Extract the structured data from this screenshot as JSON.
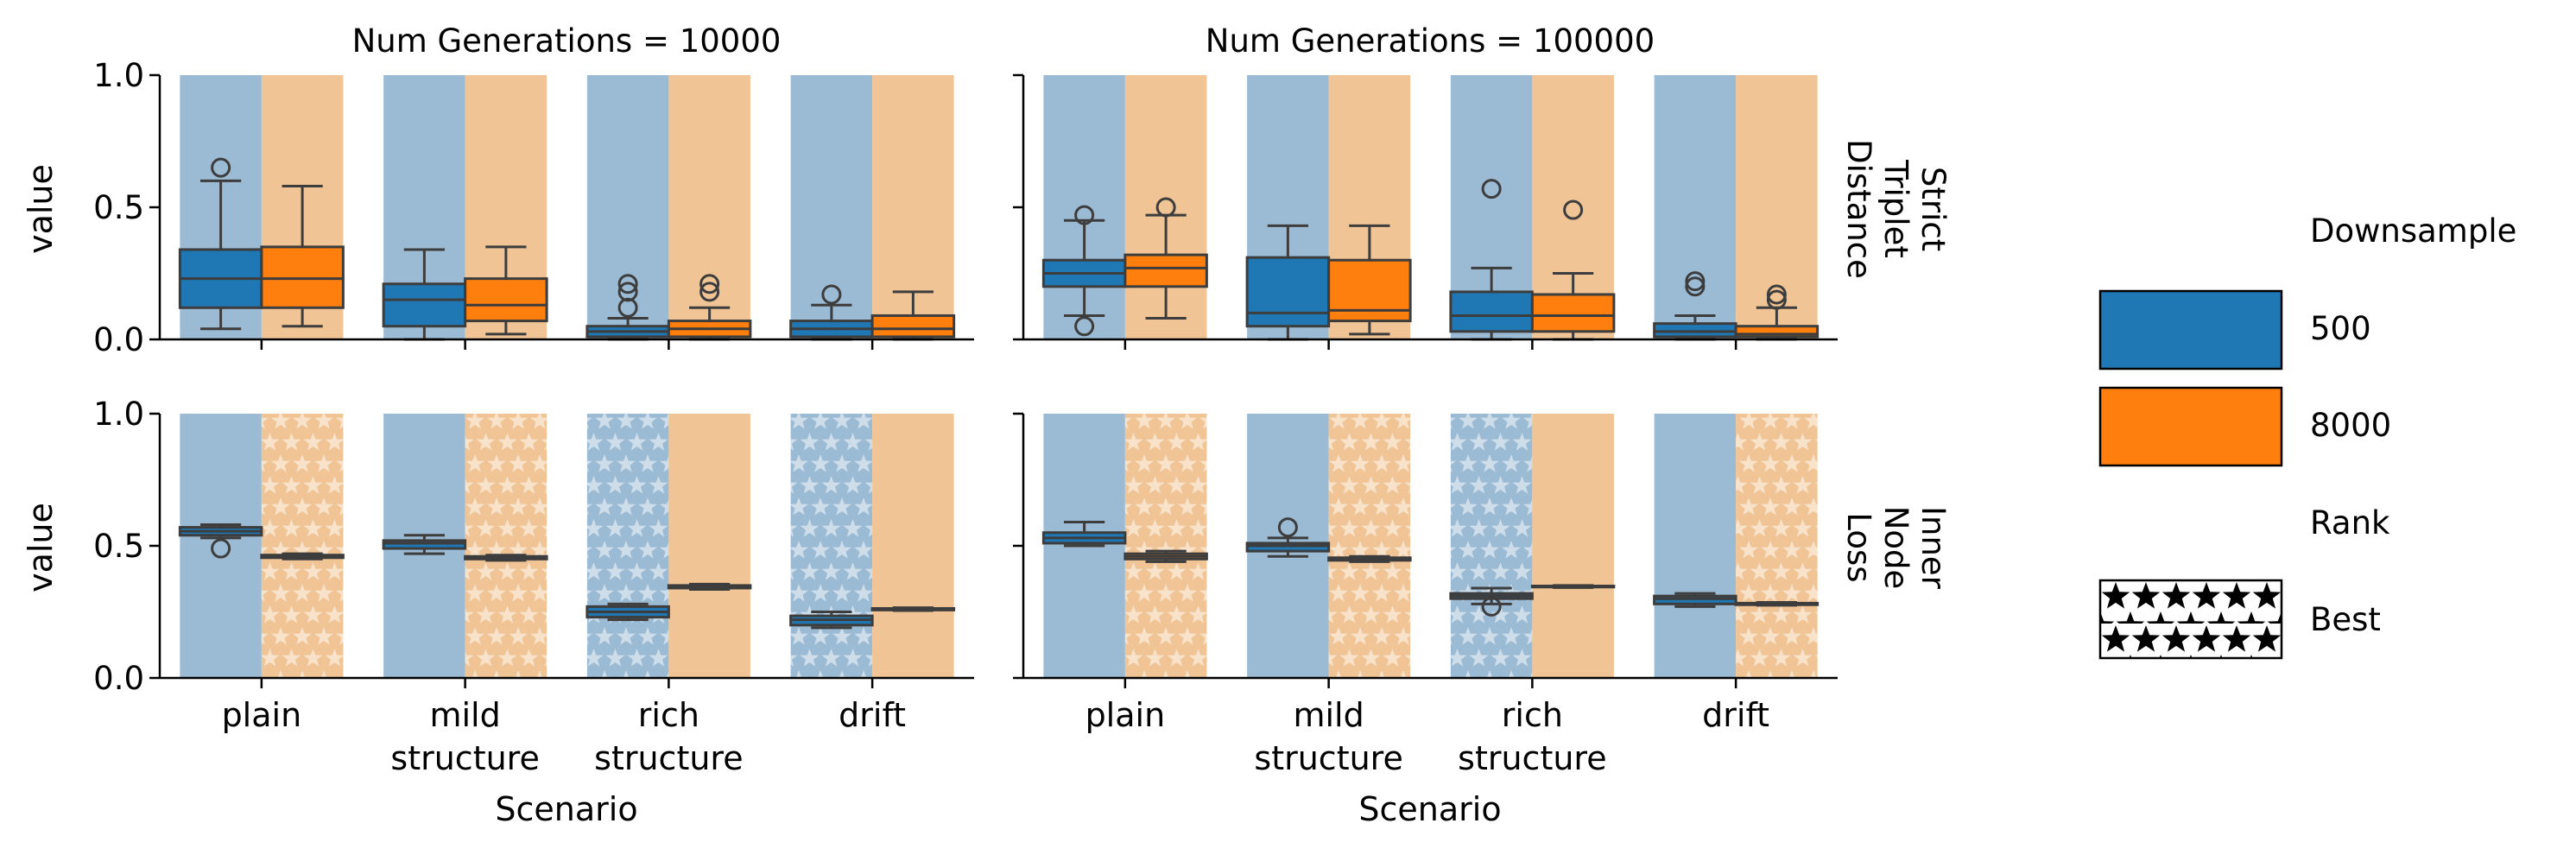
{
  "chart_data": {
    "type": "box",
    "layout": "facet-grid 2x2",
    "col_facet_titles": [
      "Num Generations = 10000",
      "Num Generations = 100000"
    ],
    "row_facet_titles": [
      [
        "Strict",
        "Triplet",
        "Distance"
      ],
      [
        "Inner",
        "Node",
        "Loss"
      ]
    ],
    "ylabel": "value",
    "xlabel": "Scenario",
    "categories": [
      [
        "plain"
      ],
      [
        "mild",
        "structure"
      ],
      [
        "rich",
        "structure"
      ],
      [
        "drift"
      ]
    ],
    "ylim": [
      0,
      1
    ],
    "yticks": [
      "0.0",
      "0.5",
      "1.0"
    ],
    "hue": {
      "title": "Downsample",
      "levels": [
        "500",
        "8000"
      ],
      "colors": [
        "#1f77b4",
        "#ff7f0e"
      ],
      "light_colors": [
        "#9bbad4",
        "#f0c495"
      ]
    },
    "pattern": {
      "title": "Rank",
      "label": "Best",
      "mark": "stars"
    },
    "legend_placement": "right",
    "panels": [
      {
        "row": 0,
        "col": 0,
        "boxes": [
          {
            "category": "plain",
            "downsample": "500",
            "whislo": 0.04,
            "q1": 0.12,
            "med": 0.23,
            "q3": 0.34,
            "whishi": 0.6,
            "fliers": [
              0.65
            ],
            "best": false
          },
          {
            "category": "plain",
            "downsample": "8000",
            "whislo": 0.05,
            "q1": 0.12,
            "med": 0.23,
            "q3": 0.35,
            "whishi": 0.58,
            "fliers": [],
            "best": false
          },
          {
            "category": "mild structure",
            "downsample": "500",
            "whislo": 0.0,
            "q1": 0.05,
            "med": 0.15,
            "q3": 0.21,
            "whishi": 0.34,
            "fliers": [],
            "best": false
          },
          {
            "category": "mild structure",
            "downsample": "8000",
            "whislo": 0.02,
            "q1": 0.07,
            "med": 0.13,
            "q3": 0.23,
            "whishi": 0.35,
            "fliers": [],
            "best": false
          },
          {
            "category": "rich structure",
            "downsample": "500",
            "whislo": 0.0,
            "q1": 0.01,
            "med": 0.03,
            "q3": 0.05,
            "whishi": 0.08,
            "fliers": [
              0.12,
              0.18,
              0.21
            ],
            "best": false
          },
          {
            "category": "rich structure",
            "downsample": "8000",
            "whislo": 0.0,
            "q1": 0.01,
            "med": 0.04,
            "q3": 0.07,
            "whishi": 0.12,
            "fliers": [
              0.18,
              0.21
            ],
            "best": false
          },
          {
            "category": "drift",
            "downsample": "500",
            "whislo": 0.0,
            "q1": 0.01,
            "med": 0.04,
            "q3": 0.07,
            "whishi": 0.13,
            "fliers": [
              0.17
            ],
            "best": false
          },
          {
            "category": "drift",
            "downsample": "8000",
            "whislo": 0.0,
            "q1": 0.01,
            "med": 0.04,
            "q3": 0.09,
            "whishi": 0.18,
            "fliers": [],
            "best": false
          }
        ]
      },
      {
        "row": 0,
        "col": 1,
        "boxes": [
          {
            "category": "plain",
            "downsample": "500",
            "whislo": 0.09,
            "q1": 0.2,
            "med": 0.25,
            "q3": 0.3,
            "whishi": 0.45,
            "fliers": [
              0.05,
              0.47
            ],
            "best": false
          },
          {
            "category": "plain",
            "downsample": "8000",
            "whislo": 0.08,
            "q1": 0.2,
            "med": 0.27,
            "q3": 0.32,
            "whishi": 0.47,
            "fliers": [
              0.5
            ],
            "best": false
          },
          {
            "category": "mild structure",
            "downsample": "500",
            "whislo": 0.0,
            "q1": 0.05,
            "med": 0.1,
            "q3": 0.31,
            "whishi": 0.43,
            "fliers": [],
            "best": false
          },
          {
            "category": "mild structure",
            "downsample": "8000",
            "whislo": 0.02,
            "q1": 0.07,
            "med": 0.11,
            "q3": 0.3,
            "whishi": 0.43,
            "fliers": [],
            "best": false
          },
          {
            "category": "rich structure",
            "downsample": "500",
            "whislo": 0.0,
            "q1": 0.03,
            "med": 0.09,
            "q3": 0.18,
            "whishi": 0.27,
            "fliers": [
              0.57
            ],
            "best": false
          },
          {
            "category": "rich structure",
            "downsample": "8000",
            "whislo": 0.0,
            "q1": 0.03,
            "med": 0.09,
            "q3": 0.17,
            "whishi": 0.25,
            "fliers": [
              0.49
            ],
            "best": false
          },
          {
            "category": "drift",
            "downsample": "500",
            "whislo": 0.0,
            "q1": 0.01,
            "med": 0.03,
            "q3": 0.06,
            "whishi": 0.09,
            "fliers": [
              0.2,
              0.22
            ],
            "best": false
          },
          {
            "category": "drift",
            "downsample": "8000",
            "whislo": 0.0,
            "q1": 0.01,
            "med": 0.02,
            "q3": 0.05,
            "whishi": 0.12,
            "fliers": [
              0.15,
              0.17
            ],
            "best": false
          }
        ]
      },
      {
        "row": 1,
        "col": 0,
        "boxes": [
          {
            "category": "plain",
            "downsample": "500",
            "whislo": 0.53,
            "q1": 0.54,
            "med": 0.555,
            "q3": 0.57,
            "whishi": 0.58,
            "fliers": [
              0.49
            ],
            "best": false
          },
          {
            "category": "plain",
            "downsample": "8000",
            "whislo": 0.45,
            "q1": 0.455,
            "med": 0.46,
            "q3": 0.465,
            "whishi": 0.47,
            "fliers": [],
            "best": true
          },
          {
            "category": "mild structure",
            "downsample": "500",
            "whislo": 0.47,
            "q1": 0.49,
            "med": 0.51,
            "q3": 0.52,
            "whishi": 0.54,
            "fliers": [],
            "best": false
          },
          {
            "category": "mild structure",
            "downsample": "8000",
            "whislo": 0.445,
            "q1": 0.45,
            "med": 0.455,
            "q3": 0.46,
            "whishi": 0.465,
            "fliers": [],
            "best": true
          },
          {
            "category": "rich structure",
            "downsample": "500",
            "whislo": 0.22,
            "q1": 0.23,
            "med": 0.25,
            "q3": 0.27,
            "whishi": 0.28,
            "fliers": [],
            "best": true
          },
          {
            "category": "rich structure",
            "downsample": "8000",
            "whislo": 0.335,
            "q1": 0.34,
            "med": 0.345,
            "q3": 0.35,
            "whishi": 0.355,
            "fliers": [],
            "best": false
          },
          {
            "category": "drift",
            "downsample": "500",
            "whislo": 0.19,
            "q1": 0.2,
            "med": 0.22,
            "q3": 0.235,
            "whishi": 0.25,
            "fliers": [],
            "best": true
          },
          {
            "category": "drift",
            "downsample": "8000",
            "whislo": 0.255,
            "q1": 0.257,
            "med": 0.26,
            "q3": 0.263,
            "whishi": 0.266,
            "fliers": [],
            "best": false
          }
        ]
      },
      {
        "row": 1,
        "col": 1,
        "boxes": [
          {
            "category": "plain",
            "downsample": "500",
            "whislo": 0.5,
            "q1": 0.51,
            "med": 0.53,
            "q3": 0.55,
            "whishi": 0.59,
            "fliers": [],
            "best": false
          },
          {
            "category": "plain",
            "downsample": "8000",
            "whislo": 0.44,
            "q1": 0.45,
            "med": 0.46,
            "q3": 0.47,
            "whishi": 0.48,
            "fliers": [],
            "best": true
          },
          {
            "category": "mild structure",
            "downsample": "500",
            "whislo": 0.46,
            "q1": 0.48,
            "med": 0.5,
            "q3": 0.51,
            "whishi": 0.53,
            "fliers": [
              0.57
            ],
            "best": false
          },
          {
            "category": "mild structure",
            "downsample": "8000",
            "whislo": 0.44,
            "q1": 0.445,
            "med": 0.45,
            "q3": 0.455,
            "whishi": 0.46,
            "fliers": [],
            "best": true
          },
          {
            "category": "rich structure",
            "downsample": "500",
            "whislo": 0.28,
            "q1": 0.3,
            "med": 0.31,
            "q3": 0.32,
            "whishi": 0.34,
            "fliers": [
              0.27
            ],
            "best": true
          },
          {
            "category": "rich structure",
            "downsample": "8000",
            "whislo": 0.342,
            "q1": 0.344,
            "med": 0.346,
            "q3": 0.348,
            "whishi": 0.35,
            "fliers": [],
            "best": false
          },
          {
            "category": "drift",
            "downsample": "500",
            "whislo": 0.27,
            "q1": 0.28,
            "med": 0.3,
            "q3": 0.31,
            "whishi": 0.32,
            "fliers": [],
            "best": false
          },
          {
            "category": "drift",
            "downsample": "8000",
            "whislo": 0.275,
            "q1": 0.277,
            "med": 0.28,
            "q3": 0.283,
            "whishi": 0.286,
            "fliers": [],
            "best": true
          }
        ]
      }
    ]
  }
}
